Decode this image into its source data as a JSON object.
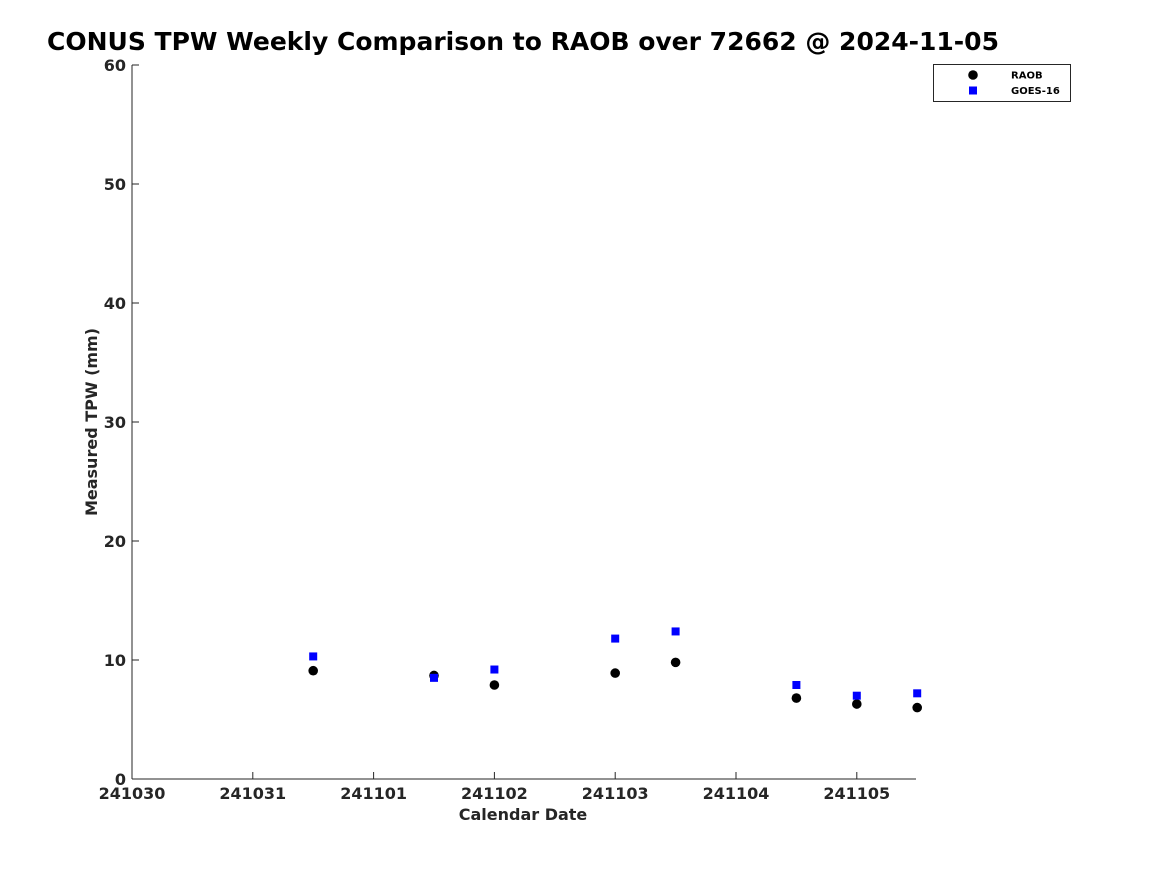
{
  "chart_data": {
    "type": "scatter",
    "title": "CONUS TPW Weekly Comparison to RAOB over 72662 @ 2024-11-05",
    "xlabel": "Calendar Date",
    "ylabel": "Measured TPW (mm)",
    "x_tick_labels": [
      "241030",
      "241031",
      "241101",
      "241102",
      "241103",
      "241104",
      "241105"
    ],
    "y_tick_labels": [
      "0",
      "10",
      "20",
      "30",
      "40",
      "50",
      "60"
    ],
    "ylim": [
      0,
      60
    ],
    "grid": false,
    "legend_position": "top-right",
    "series": [
      {
        "name": "RAOB",
        "marker": "circle",
        "color": "#000000",
        "x": [
          "2024-10-31 12:00",
          "2024-11-01 12:00",
          "2024-11-02 00:00",
          "2024-11-03 00:00",
          "2024-11-03 12:00",
          "2024-11-04 12:00",
          "2024-11-05 00:00",
          "2024-11-05 12:00"
        ],
        "y": [
          9.1,
          8.7,
          7.9,
          8.9,
          9.8,
          6.8,
          6.3,
          6.0
        ]
      },
      {
        "name": "GOES-16",
        "marker": "square",
        "color": "#0000ff",
        "x": [
          "2024-10-31 12:00",
          "2024-11-01 12:00",
          "2024-11-02 00:00",
          "2024-11-03 00:00",
          "2024-11-03 12:00",
          "2024-11-04 12:00",
          "2024-11-05 00:00",
          "2024-11-05 12:00"
        ],
        "y": [
          10.3,
          8.5,
          9.2,
          11.8,
          12.4,
          7.9,
          7.0,
          7.2
        ]
      }
    ]
  }
}
